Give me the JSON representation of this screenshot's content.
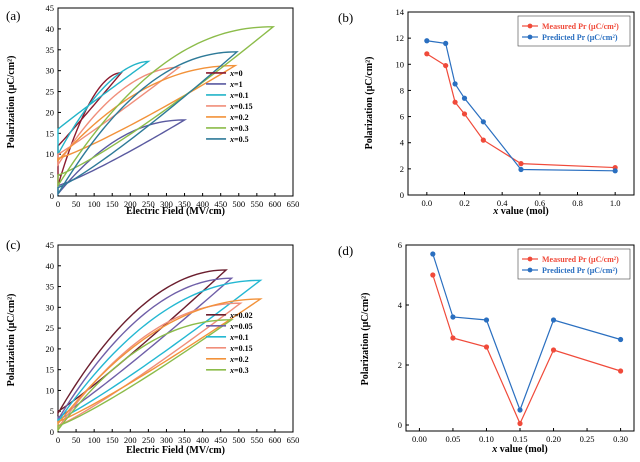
{
  "figure": {
    "panels": [
      "(a)",
      "(b)",
      "(c)",
      "(d)"
    ]
  },
  "chart_data": [
    {
      "id": "a",
      "type": "line",
      "subtype": "polarization-field hysteresis loops",
      "title": "",
      "label": "(a)",
      "xlabel": "Electric Field (MV/cm)",
      "ylabel": "Polarization (μC/cm²)",
      "xlim": [
        0,
        650
      ],
      "ylim": [
        0,
        45
      ],
      "xticks": [
        0,
        50,
        100,
        150,
        200,
        250,
        300,
        350,
        400,
        450,
        500,
        550,
        600,
        650
      ],
      "yticks": [
        0,
        5,
        10,
        15,
        20,
        25,
        30,
        35,
        40,
        45
      ],
      "legend_prefix": "x",
      "legend_position": "center-right",
      "series": [
        {
          "name": "=0",
          "color": "#8b1a2e",
          "emax": 175,
          "pmax": 29.5,
          "p0": 2.5,
          "pr": 12,
          "shape": 0.3
        },
        {
          "name": "=1",
          "color": "#5a5aa0",
          "emax": 350,
          "pmax": 18.2,
          "p0": 0.5,
          "pr": 2.5,
          "shape": 0.5
        },
        {
          "name": "=0.1",
          "color": "#23b4c8",
          "emax": 250,
          "pmax": 32.2,
          "p0": 10,
          "pr": 16,
          "shape": 0.2
        },
        {
          "name": "=0.15",
          "color": "#f08e7a",
          "emax": 335,
          "pmax": 30.8,
          "p0": 7.5,
          "pr": 10,
          "shape": 0.35
        },
        {
          "name": "=0.2",
          "color": "#f2923a",
          "emax": 490,
          "pmax": 31.2,
          "p0": 8.5,
          "pr": 9,
          "shape": 0.5
        },
        {
          "name": "=0.3",
          "color": "#8cbc4a",
          "emax": 595,
          "pmax": 40.5,
          "p0": 2.5,
          "pr": 5,
          "shape": 0.55
        },
        {
          "name": "=0.5",
          "color": "#2e7a98",
          "emax": 495,
          "pmax": 34.5,
          "p0": 0.5,
          "pr": 2,
          "shape": 0.5
        }
      ]
    },
    {
      "id": "b",
      "type": "line",
      "title": "",
      "label": "(b)",
      "xlabel": "x value (mol)",
      "ylabel": "Polarization (μC/cm²)",
      "xlim": [
        -0.1,
        1.1
      ],
      "ylim": [
        0,
        14
      ],
      "xticks": [
        0.0,
        0.2,
        0.4,
        0.6,
        0.8,
        1.0
      ],
      "xtick_labels": [
        "0.0",
        "0.2",
        "0.4",
        "0.6",
        "0.8",
        "1.0"
      ],
      "yticks": [
        0,
        2,
        4,
        6,
        8,
        10,
        12,
        14
      ],
      "legend_position": "top-right",
      "series": [
        {
          "name": "Measured Pr (μC/cm²)",
          "color": "#f04a3a",
          "x": [
            0,
            0.1,
            0.15,
            0.2,
            0.3,
            0.5,
            1.0
          ],
          "values": [
            10.8,
            9.9,
            7.1,
            6.2,
            4.2,
            2.4,
            2.1
          ]
        },
        {
          "name": "Predicted Pr (μC/cm²)",
          "color": "#2a6fc0",
          "x": [
            0,
            0.1,
            0.15,
            0.2,
            0.3,
            0.5,
            1.0
          ],
          "values": [
            11.8,
            11.6,
            8.5,
            7.4,
            5.6,
            1.95,
            1.85
          ]
        }
      ]
    },
    {
      "id": "c",
      "type": "line",
      "subtype": "polarization-field hysteresis loops",
      "title": "",
      "label": "(c)",
      "xlabel": "Electric Field (MV/cm)",
      "ylabel": "Polarization (μC/cm²)",
      "xlim": [
        0,
        650
      ],
      "ylim": [
        0,
        45
      ],
      "xticks": [
        0,
        50,
        100,
        150,
        200,
        250,
        300,
        350,
        400,
        450,
        500,
        550,
        600,
        650
      ],
      "yticks": [
        0,
        5,
        10,
        15,
        20,
        25,
        30,
        35,
        40,
        45
      ],
      "legend_prefix": "x",
      "legend_position": "center-right",
      "series": [
        {
          "name": "=0.02",
          "color": "#6b1e2e",
          "emax": 465,
          "pmax": 39,
          "p0": 4.5,
          "pr": 5,
          "shape": 0.4
        },
        {
          "name": "=0.05",
          "color": "#6f5fa8",
          "emax": 480,
          "pmax": 37,
          "p0": 3,
          "pr": 3.5,
          "shape": 0.4
        },
        {
          "name": "=0.1",
          "color": "#24b8d2",
          "emax": 560,
          "pmax": 36.5,
          "p0": 2.5,
          "pr": 3,
          "shape": 0.45
        },
        {
          "name": "=0.15",
          "color": "#f08e7a",
          "emax": 505,
          "pmax": 31,
          "p0": 1,
          "pr": 1.5,
          "shape": 0.45
        },
        {
          "name": "=0.2",
          "color": "#f2923a",
          "emax": 560,
          "pmax": 32,
          "p0": 2,
          "pr": 2.5,
          "shape": 0.45
        },
        {
          "name": "=0.3",
          "color": "#8cbc4a",
          "emax": 480,
          "pmax": 27,
          "p0": 0.5,
          "pr": 1.5,
          "shape": 0.5
        }
      ]
    },
    {
      "id": "d",
      "type": "line",
      "title": "",
      "label": "(d)",
      "xlabel": "x value (mol)",
      "ylabel": "Polarization (μC/cm²)",
      "xlim": [
        -0.02,
        0.32
      ],
      "ylim": [
        -0.2,
        6
      ],
      "xticks": [
        0.0,
        0.05,
        0.1,
        0.15,
        0.2,
        0.25,
        0.3
      ],
      "xtick_labels": [
        "0.00",
        "0.05",
        "0.10",
        "0.15",
        "0.20",
        "0.25",
        "0.30"
      ],
      "yticks": [
        0,
        2,
        4,
        6
      ],
      "legend_position": "top-right",
      "series": [
        {
          "name": "Measured Pr (μC/cm²)",
          "color": "#f04a3a",
          "x": [
            0.02,
            0.05,
            0.1,
            0.15,
            0.2,
            0.3
          ],
          "values": [
            5.0,
            2.9,
            2.6,
            0.05,
            2.5,
            1.8
          ]
        },
        {
          "name": "Predicted Pr (μC/cm²)",
          "color": "#2a6fc0",
          "x": [
            0.02,
            0.05,
            0.1,
            0.15,
            0.2,
            0.3
          ],
          "values": [
            5.7,
            3.6,
            3.5,
            0.5,
            3.5,
            2.85
          ]
        }
      ]
    }
  ]
}
